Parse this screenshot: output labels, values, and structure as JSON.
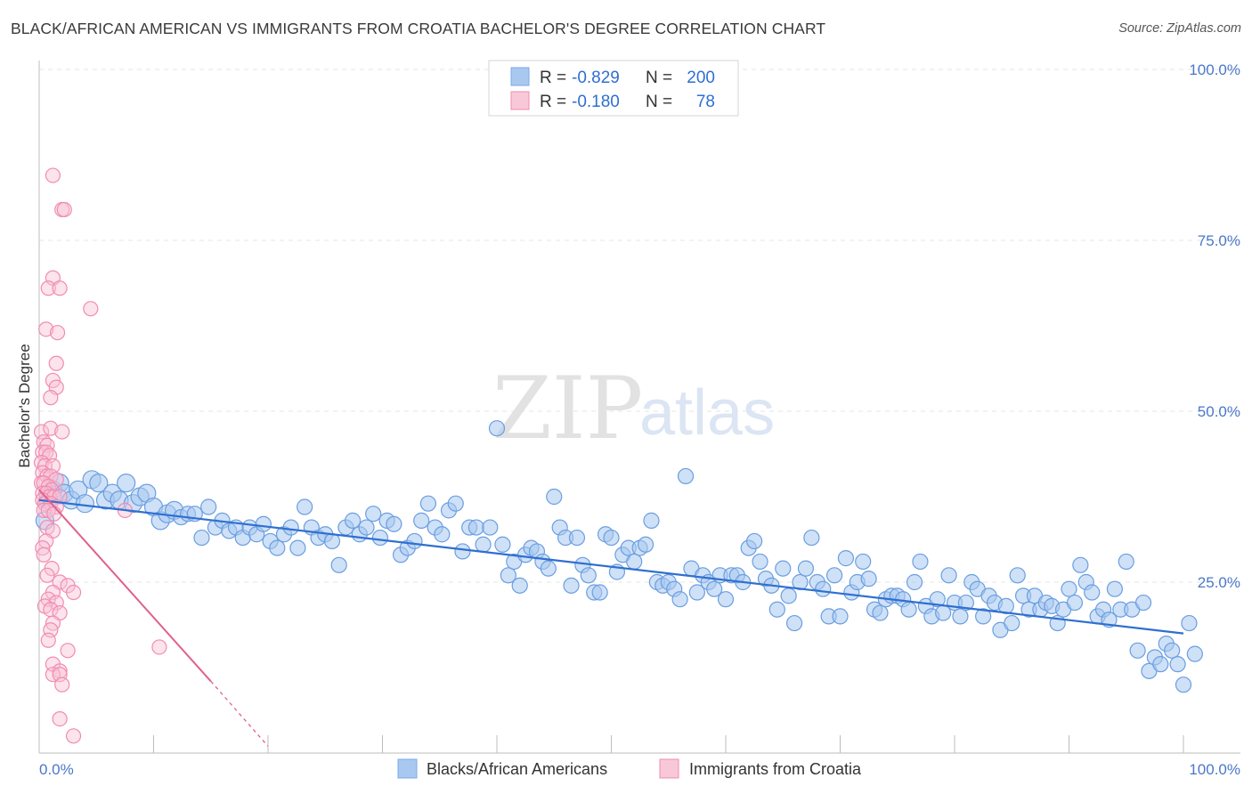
{
  "title": "BLACK/AFRICAN AMERICAN VS IMMIGRANTS FROM CROATIA BACHELOR'S DEGREE CORRELATION CHART",
  "source": "Source: ZipAtlas.com",
  "watermark": {
    "zip": "ZIP",
    "atlas": "atlas"
  },
  "legend": {
    "rows": [
      {
        "r_label": "R =",
        "r_value": "-0.829",
        "n_label": "N =",
        "n_value": "200",
        "color": "#a8c8f0"
      },
      {
        "r_label": "R =",
        "r_value": "-0.180",
        "n_label": "N =",
        "n_value": "78",
        "color": "#f5b8cc"
      }
    ]
  },
  "bottom_legend": [
    "Blacks/African Americans",
    "Immigrants from Croatia"
  ],
  "chart_data": {
    "type": "scatter",
    "title": "BLACK/AFRICAN AMERICAN VS IMMIGRANTS FROM CROATIA BACHELOR'S DEGREE CORRELATION CHART",
    "xlabel": "",
    "ylabel": "Bachelor's Degree",
    "xlim": [
      0,
      100
    ],
    "ylim": [
      0,
      100
    ],
    "x_tick_labels": [
      "0.0%",
      "100.0%"
    ],
    "y_tick_labels": [
      "25.0%",
      "50.0%",
      "75.0%",
      "100.0%"
    ],
    "y_ticks": [
      25,
      50,
      75,
      100
    ],
    "grid": true,
    "legend_position": "top-center",
    "colors": {
      "blue": "#7aaae8",
      "blue_line": "#2f6fd0",
      "pink": "#f08cb0",
      "pink_line": "#e0608f"
    },
    "series": [
      {
        "name": "Blacks/African Americans",
        "r": -0.829,
        "n": 200,
        "trend": {
          "x": [
            0,
            100
          ],
          "y": [
            37.0,
            17.5
          ]
        },
        "points": [
          [
            0.5,
            34
          ],
          [
            0.8,
            37
          ],
          [
            1.2,
            38.5
          ],
          [
            1.8,
            39.5
          ],
          [
            2.2,
            38
          ],
          [
            2.8,
            37
          ],
          [
            3.4,
            38.5
          ],
          [
            4.0,
            36.5
          ],
          [
            4.6,
            40
          ],
          [
            5.2,
            39.5
          ],
          [
            5.8,
            37
          ],
          [
            6.4,
            38
          ],
          [
            7.0,
            37
          ],
          [
            7.6,
            39.5
          ],
          [
            8.2,
            36.5
          ],
          [
            8.8,
            37.5
          ],
          [
            9.4,
            38
          ],
          [
            10,
            36
          ],
          [
            10.6,
            34
          ],
          [
            11.2,
            35
          ],
          [
            11.8,
            35.5
          ],
          [
            12.4,
            34.5
          ],
          [
            13.0,
            35
          ],
          [
            13.6,
            35
          ],
          [
            14.2,
            31.5
          ],
          [
            14.8,
            36
          ],
          [
            15.4,
            33
          ],
          [
            16.0,
            34
          ],
          [
            16.6,
            32.5
          ],
          [
            17.2,
            33
          ],
          [
            17.8,
            31.5
          ],
          [
            18.4,
            33
          ],
          [
            19.0,
            32
          ],
          [
            19.6,
            33.5
          ],
          [
            20.2,
            31
          ],
          [
            20.8,
            30
          ],
          [
            21.4,
            32
          ],
          [
            22.0,
            33
          ],
          [
            22.6,
            30
          ],
          [
            23.2,
            36
          ],
          [
            23.8,
            33
          ],
          [
            24.4,
            31.5
          ],
          [
            25.0,
            32
          ],
          [
            25.6,
            31
          ],
          [
            26.2,
            27.5
          ],
          [
            26.8,
            33
          ],
          [
            27.4,
            34
          ],
          [
            28.0,
            32
          ],
          [
            28.6,
            33
          ],
          [
            29.2,
            35
          ],
          [
            29.8,
            31.5
          ],
          [
            30.4,
            34
          ],
          [
            31.0,
            33.5
          ],
          [
            31.6,
            29
          ],
          [
            32.2,
            30
          ],
          [
            32.8,
            31
          ],
          [
            33.4,
            34
          ],
          [
            34.0,
            36.5
          ],
          [
            34.6,
            33
          ],
          [
            35.2,
            32
          ],
          [
            35.8,
            35.5
          ],
          [
            36.4,
            36.5
          ],
          [
            37.0,
            29.5
          ],
          [
            37.6,
            33
          ],
          [
            38.2,
            33
          ],
          [
            38.8,
            30.5
          ],
          [
            39.4,
            33
          ],
          [
            40,
            47.5
          ],
          [
            40.5,
            30.5
          ],
          [
            41.0,
            26
          ],
          [
            41.5,
            28
          ],
          [
            42,
            24.5
          ],
          [
            42.5,
            29
          ],
          [
            43,
            30
          ],
          [
            43.5,
            29.5
          ],
          [
            44,
            28
          ],
          [
            44.5,
            27
          ],
          [
            45,
            37.5
          ],
          [
            45.5,
            33
          ],
          [
            46,
            31.5
          ],
          [
            46.5,
            24.5
          ],
          [
            47,
            31.5
          ],
          [
            47.5,
            27.5
          ],
          [
            48,
            26
          ],
          [
            48.5,
            23.5
          ],
          [
            49,
            23.5
          ],
          [
            49.5,
            32
          ],
          [
            50,
            31.5
          ],
          [
            50.5,
            26.5
          ],
          [
            51,
            29
          ],
          [
            51.5,
            30
          ],
          [
            52,
            28
          ],
          [
            52.5,
            30
          ],
          [
            53,
            30.5
          ],
          [
            53.5,
            34
          ],
          [
            54,
            25
          ],
          [
            54.5,
            24.5
          ],
          [
            55,
            25
          ],
          [
            55.5,
            24
          ],
          [
            56,
            22.5
          ],
          [
            56.5,
            40.5
          ],
          [
            57,
            27
          ],
          [
            57.5,
            23.5
          ],
          [
            58,
            26
          ],
          [
            58.5,
            25
          ],
          [
            59,
            24
          ],
          [
            59.5,
            26
          ],
          [
            60,
            22.5
          ],
          [
            60.5,
            26
          ],
          [
            61,
            26
          ],
          [
            61.5,
            25
          ],
          [
            62,
            30
          ],
          [
            62.5,
            31
          ],
          [
            63,
            28
          ],
          [
            63.5,
            25.5
          ],
          [
            64,
            24.5
          ],
          [
            64.5,
            21
          ],
          [
            65,
            27
          ],
          [
            65.5,
            23
          ],
          [
            66,
            19
          ],
          [
            66.5,
            25
          ],
          [
            67,
            27
          ],
          [
            67.5,
            31.5
          ],
          [
            68,
            25
          ],
          [
            68.5,
            24
          ],
          [
            69,
            20
          ],
          [
            69.5,
            26
          ],
          [
            70,
            20
          ],
          [
            70.5,
            28.5
          ],
          [
            71,
            23.5
          ],
          [
            71.5,
            25
          ],
          [
            72,
            28
          ],
          [
            72.5,
            25.5
          ],
          [
            73,
            21
          ],
          [
            73.5,
            20.5
          ],
          [
            74,
            22.5
          ],
          [
            74.5,
            23
          ],
          [
            75,
            23
          ],
          [
            75.5,
            22.5
          ],
          [
            76,
            21
          ],
          [
            76.5,
            25
          ],
          [
            77,
            28
          ],
          [
            77.5,
            21.5
          ],
          [
            78,
            20
          ],
          [
            78.5,
            22.5
          ],
          [
            79,
            20.5
          ],
          [
            79.5,
            26
          ],
          [
            80,
            22
          ],
          [
            80.5,
            20
          ],
          [
            81,
            22
          ],
          [
            81.5,
            25
          ],
          [
            82,
            24
          ],
          [
            82.5,
            20
          ],
          [
            83,
            23
          ],
          [
            83.5,
            22
          ],
          [
            84,
            18
          ],
          [
            84.5,
            21.5
          ],
          [
            85,
            19
          ],
          [
            85.5,
            26
          ],
          [
            86,
            23
          ],
          [
            86.5,
            21
          ],
          [
            87,
            23
          ],
          [
            87.5,
            21
          ],
          [
            88,
            22
          ],
          [
            88.5,
            21.5
          ],
          [
            89,
            19
          ],
          [
            89.5,
            21
          ],
          [
            90,
            24
          ],
          [
            90.5,
            22
          ],
          [
            91,
            27.5
          ],
          [
            91.5,
            25
          ],
          [
            92,
            23.5
          ],
          [
            92.5,
            20
          ],
          [
            93,
            21
          ],
          [
            93.5,
            19.5
          ],
          [
            94,
            24
          ],
          [
            94.5,
            21
          ],
          [
            95,
            28
          ],
          [
            95.5,
            21
          ],
          [
            96,
            15
          ],
          [
            96.5,
            22
          ],
          [
            97,
            12
          ],
          [
            97.5,
            14
          ],
          [
            98,
            13
          ],
          [
            98.5,
            16
          ],
          [
            99,
            15
          ],
          [
            99.5,
            13
          ],
          [
            100,
            10
          ],
          [
            100.5,
            19
          ],
          [
            101,
            14.5
          ]
        ]
      },
      {
        "name": "Immigrants from Croatia",
        "r": -0.18,
        "n": 78,
        "trend": {
          "x": [
            0,
            15
          ],
          "y": [
            38.5,
            10.5
          ],
          "dashed_to": [
            20,
            1
          ]
        },
        "points": [
          [
            1.2,
            84.5
          ],
          [
            2.0,
            79.5
          ],
          [
            2.2,
            79.5
          ],
          [
            1.2,
            69.5
          ],
          [
            0.8,
            68
          ],
          [
            1.8,
            68
          ],
          [
            4.5,
            65
          ],
          [
            0.6,
            62
          ],
          [
            1.6,
            61.5
          ],
          [
            1.5,
            57
          ],
          [
            1.2,
            54.5
          ],
          [
            1.5,
            53.5
          ],
          [
            1.0,
            52
          ],
          [
            0.2,
            47
          ],
          [
            1.0,
            47.5
          ],
          [
            2.0,
            47
          ],
          [
            0.4,
            45.5
          ],
          [
            0.7,
            45
          ],
          [
            0.3,
            44
          ],
          [
            0.6,
            44
          ],
          [
            0.9,
            43.5
          ],
          [
            0.2,
            42.5
          ],
          [
            0.5,
            42
          ],
          [
            1.2,
            42
          ],
          [
            0.3,
            41
          ],
          [
            0.7,
            40.5
          ],
          [
            1.0,
            40.5
          ],
          [
            1.5,
            40
          ],
          [
            0.2,
            39.5
          ],
          [
            0.4,
            39.5
          ],
          [
            0.8,
            39
          ],
          [
            1.1,
            38.5
          ],
          [
            0.3,
            38
          ],
          [
            0.6,
            38
          ],
          [
            0.9,
            37.5
          ],
          [
            1.3,
            37.5
          ],
          [
            1.8,
            37.5
          ],
          [
            0.3,
            37
          ],
          [
            0.5,
            36.5
          ],
          [
            1.0,
            36.5
          ],
          [
            1.5,
            36
          ],
          [
            0.4,
            35.5
          ],
          [
            0.8,
            35.5
          ],
          [
            1.3,
            35
          ],
          [
            7.5,
            35.5
          ],
          [
            0.7,
            33
          ],
          [
            1.2,
            32.5
          ],
          [
            0.6,
            31
          ],
          [
            0.3,
            30
          ],
          [
            0.4,
            29
          ],
          [
            1.1,
            27
          ],
          [
            0.7,
            26
          ],
          [
            1.8,
            25
          ],
          [
            2.5,
            24.5
          ],
          [
            3.0,
            23.5
          ],
          [
            1.2,
            23.5
          ],
          [
            0.8,
            22.5
          ],
          [
            1.5,
            22
          ],
          [
            0.5,
            21.5
          ],
          [
            1.0,
            21
          ],
          [
            1.8,
            20.5
          ],
          [
            1.2,
            19
          ],
          [
            1.0,
            18
          ],
          [
            0.8,
            16.5
          ],
          [
            2.5,
            15
          ],
          [
            10.5,
            15.5
          ],
          [
            1.2,
            13
          ],
          [
            1.8,
            12
          ],
          [
            1.2,
            11.5
          ],
          [
            1.8,
            11.5
          ],
          [
            2.0,
            10
          ],
          [
            1.8,
            5
          ],
          [
            3.0,
            2.5
          ]
        ]
      }
    ]
  }
}
